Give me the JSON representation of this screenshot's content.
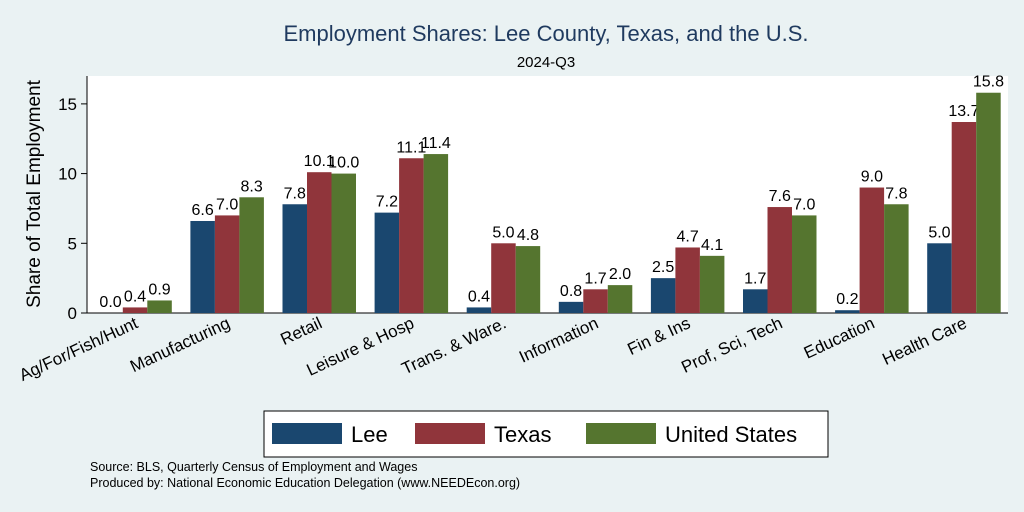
{
  "chart_data": {
    "type": "bar",
    "title": "Employment Shares: Lee County, Texas, and the U.S.",
    "subtitle": "2024-Q3",
    "ylabel": "Share of Total Employment",
    "xlabel": "",
    "ylim": [
      0,
      17
    ],
    "yticks": [
      0,
      5,
      10,
      15
    ],
    "grid": false,
    "legend_position": "bottom",
    "categories": [
      "Ag/For/Fish/Hunt",
      "Manufacturing",
      "Retail",
      "Leisure & Hosp",
      "Trans. & Ware.",
      "Information",
      "Fin & Ins",
      "Prof, Sci, Tech",
      "Education",
      "Health Care"
    ],
    "series": [
      {
        "name": "Lee",
        "color": "#1a476f",
        "values": [
          0.0,
          6.6,
          7.8,
          7.2,
          0.4,
          0.8,
          2.5,
          1.7,
          0.2,
          5.0
        ]
      },
      {
        "name": "Texas",
        "color": "#90353b",
        "values": [
          0.4,
          7.0,
          10.1,
          11.1,
          5.0,
          1.7,
          4.7,
          7.6,
          9.0,
          13.7
        ]
      },
      {
        "name": "United States",
        "color": "#55752f",
        "values": [
          0.9,
          8.3,
          10.0,
          11.4,
          4.8,
          2.0,
          4.1,
          7.0,
          7.8,
          15.8
        ]
      }
    ],
    "notes": [
      "Source: BLS, Quarterly Census of Employment and Wages",
      "Produced by: National Economic Education Delegation (www.NEEDEcon.org)"
    ]
  }
}
